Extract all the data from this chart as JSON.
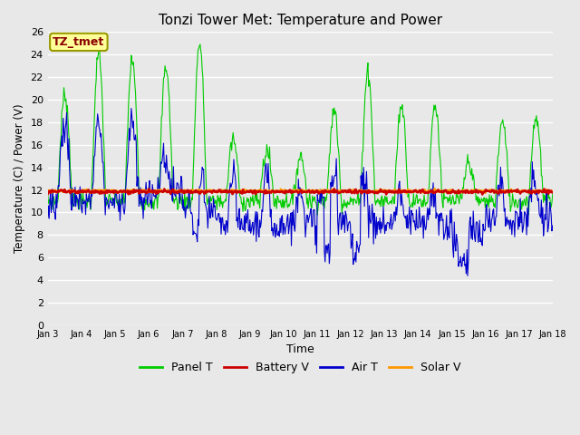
{
  "title": "Tonzi Tower Met: Temperature and Power",
  "xlabel": "Time",
  "ylabel": "Temperature (C) / Power (V)",
  "annotation": "TZ_tmet",
  "ylim": [
    0,
    26
  ],
  "yticks": [
    0,
    2,
    4,
    6,
    8,
    10,
    12,
    14,
    16,
    18,
    20,
    22,
    24,
    26
  ],
  "xtick_labels": [
    "Jan 3",
    "Jan 4",
    "Jan 5",
    "Jan 6",
    "Jan 7",
    "Jan 8",
    "Jan 9",
    "Jan 10",
    "Jan 11",
    "Jan 12",
    "Jan 13",
    "Jan 14",
    "Jan 15",
    "Jan 16",
    "Jan 17",
    "Jan 18"
  ],
  "background_color": "#e8e8e8",
  "plot_bg_color": "#e8e8e8",
  "grid_color": "#ffffff",
  "colors": {
    "panel_t": "#00cc00",
    "battery_v": "#cc0000",
    "air_t": "#0000cc",
    "solar_v": "#ff9900"
  },
  "legend_labels": [
    "Panel T",
    "Battery V",
    "Air T",
    "Solar V"
  ],
  "figsize": [
    6.4,
    4.8
  ],
  "dpi": 100
}
